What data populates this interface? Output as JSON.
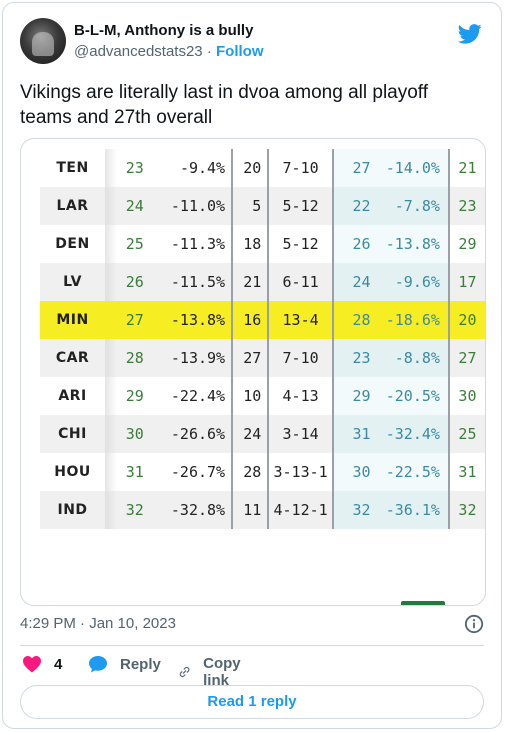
{
  "author": {
    "name": "B-L-M, Anthony is a bully",
    "handle": "@advancedstats23",
    "separator": "·",
    "follow_label": "Follow"
  },
  "tweet": {
    "text": "Vikings are literally last in dvoa among all playoff teams and 27th overall"
  },
  "table": {
    "rows": [
      {
        "team": "TEN",
        "rank": "23",
        "dvoa": "-9.4%",
        "wr": "20",
        "rec": "7-10",
        "rank2": "27",
        "dvoa2": "-14.0%",
        "rank3": "21",
        "highlight": false
      },
      {
        "team": "LAR",
        "rank": "24",
        "dvoa": "-11.0%",
        "wr": "5",
        "rec": "5-12",
        "rank2": "22",
        "dvoa2": "-7.8%",
        "rank3": "23",
        "highlight": false
      },
      {
        "team": "DEN",
        "rank": "25",
        "dvoa": "-11.3%",
        "wr": "18",
        "rec": "5-12",
        "rank2": "26",
        "dvoa2": "-13.8%",
        "rank3": "29",
        "highlight": false
      },
      {
        "team": "LV",
        "rank": "26",
        "dvoa": "-11.5%",
        "wr": "21",
        "rec": "6-11",
        "rank2": "24",
        "dvoa2": "-9.6%",
        "rank3": "17",
        "highlight": false
      },
      {
        "team": "MIN",
        "rank": "27",
        "dvoa": "-13.8%",
        "wr": "16",
        "rec": "13-4",
        "rank2": "28",
        "dvoa2": "-18.6%",
        "rank3": "20",
        "highlight": true
      },
      {
        "team": "CAR",
        "rank": "28",
        "dvoa": "-13.9%",
        "wr": "27",
        "rec": "7-10",
        "rank2": "23",
        "dvoa2": "-8.8%",
        "rank3": "27",
        "highlight": false
      },
      {
        "team": "ARI",
        "rank": "29",
        "dvoa": "-22.4%",
        "wr": "10",
        "rec": "4-13",
        "rank2": "29",
        "dvoa2": "-20.5%",
        "rank3": "30",
        "highlight": false
      },
      {
        "team": "CHI",
        "rank": "30",
        "dvoa": "-26.6%",
        "wr": "24",
        "rec": "3-14",
        "rank2": "31",
        "dvoa2": "-32.4%",
        "rank3": "25",
        "highlight": false
      },
      {
        "team": "HOU",
        "rank": "31",
        "dvoa": "-26.7%",
        "wr": "28",
        "rec": "3-13-1",
        "rank2": "30",
        "dvoa2": "-22.5%",
        "rank3": "31",
        "highlight": false
      },
      {
        "team": "IND",
        "rank": "32",
        "dvoa": "-32.8%",
        "wr": "11",
        "rec": "4-12-1",
        "rank2": "32",
        "dvoa2": "-36.1%",
        "rank3": "32",
        "highlight": false
      }
    ]
  },
  "meta": {
    "timestamp": "4:29 PM · Jan 10, 2023"
  },
  "actions": {
    "like_count": "4",
    "reply_label": "Reply",
    "copy_link_label": "Copy link",
    "read_replies_label": "Read 1 reply"
  },
  "colors": {
    "accent": "#1d9bf0",
    "like": "#f91880",
    "highlight": "#f6ed22"
  },
  "icons": [
    "twitter-bird-icon",
    "heart-icon",
    "reply-bubble-icon",
    "link-icon",
    "info-icon"
  ]
}
